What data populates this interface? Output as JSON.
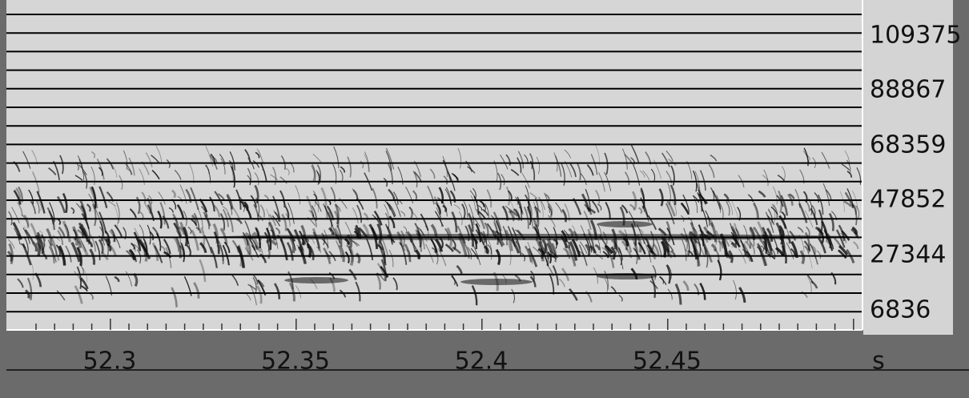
{
  "frequency_axis": {
    "labels": [
      "109375",
      "88867",
      "68359",
      "47852",
      "27344",
      "6836"
    ]
  },
  "time_axis": {
    "labels": [
      "52.3",
      "52.35",
      "52.4",
      "52.45"
    ],
    "unit": "s"
  }
}
